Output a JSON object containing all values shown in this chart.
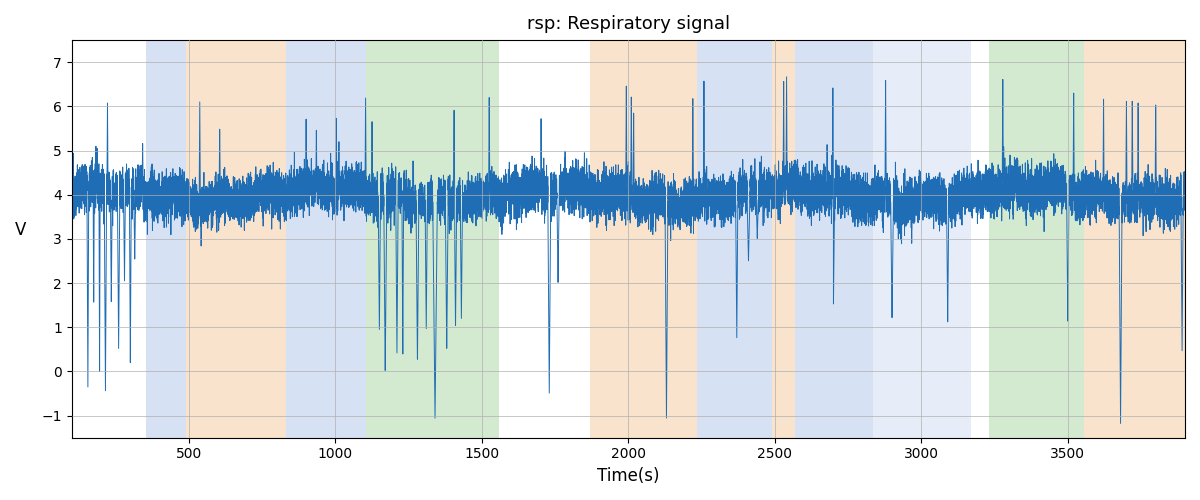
{
  "title": "rsp: Respiratory signal",
  "xlabel": "Time(s)",
  "ylabel": "V",
  "ylim": [
    -1.5,
    7.5
  ],
  "xlim": [
    100,
    3900
  ],
  "signal_color": "#1f6eb5",
  "signal_linewidth": 0.7,
  "background_color": "#ffffff",
  "grid_color": "#b0b0b0",
  "colored_bands": [
    {
      "xmin": 355,
      "xmax": 490,
      "color": "#aec6e8",
      "alpha": 0.5
    },
    {
      "xmin": 490,
      "xmax": 830,
      "color": "#f5c99a",
      "alpha": 0.5
    },
    {
      "xmin": 830,
      "xmax": 1105,
      "color": "#aec6e8",
      "alpha": 0.5
    },
    {
      "xmin": 1105,
      "xmax": 1560,
      "color": "#a8d5a2",
      "alpha": 0.5
    },
    {
      "xmin": 1870,
      "xmax": 2235,
      "color": "#f5c99a",
      "alpha": 0.5
    },
    {
      "xmin": 2235,
      "xmax": 2490,
      "color": "#aec6e8",
      "alpha": 0.5
    },
    {
      "xmin": 2490,
      "xmax": 2570,
      "color": "#f5c99a",
      "alpha": 0.5
    },
    {
      "xmin": 2570,
      "xmax": 2835,
      "color": "#aec6e8",
      "alpha": 0.5
    },
    {
      "xmin": 2835,
      "xmax": 3170,
      "color": "#aec6e8",
      "alpha": 0.3
    },
    {
      "xmin": 3230,
      "xmax": 3555,
      "color": "#a8d5a2",
      "alpha": 0.5
    },
    {
      "xmin": 3555,
      "xmax": 3900,
      "color": "#f5c99a",
      "alpha": 0.5
    }
  ],
  "yticks": [
    -1,
    0,
    1,
    2,
    3,
    4,
    5,
    6,
    7
  ],
  "xticks": [
    500,
    1000,
    1500,
    2000,
    2500,
    3000,
    3500
  ],
  "figsize": [
    12.0,
    5.0
  ],
  "dpi": 100
}
